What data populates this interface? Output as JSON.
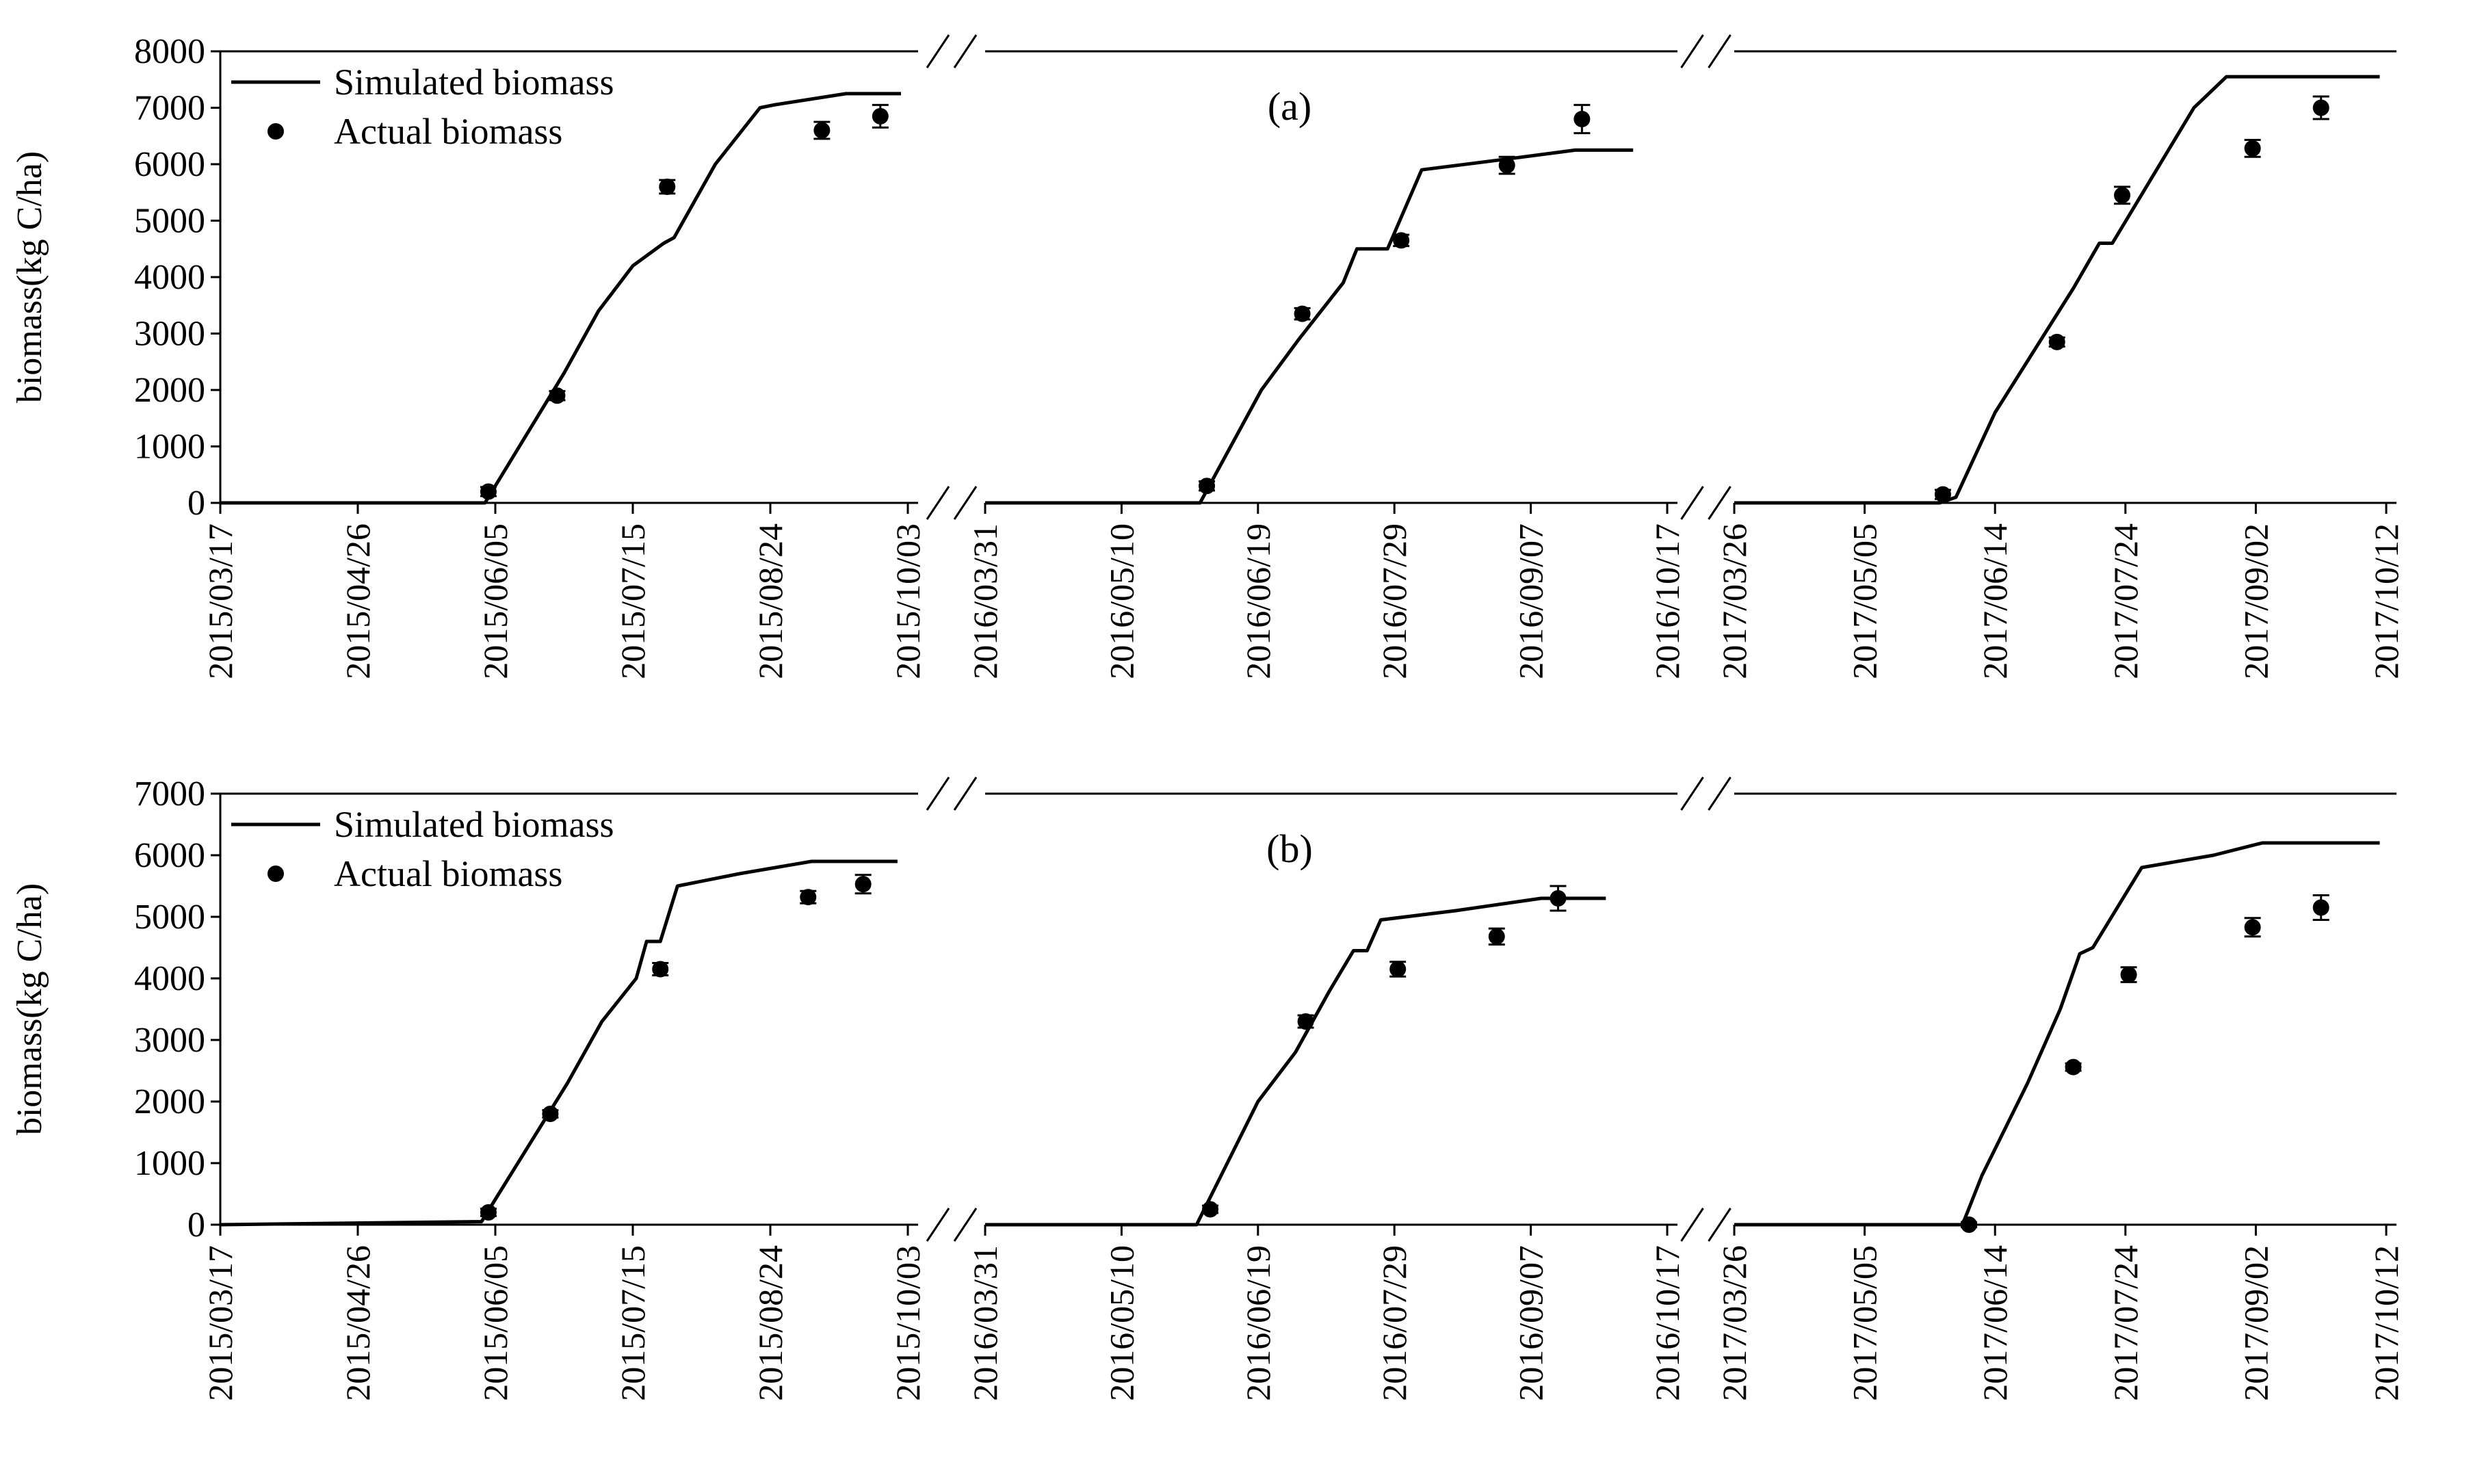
{
  "chart_data": [
    {
      "type": "line",
      "panel_label": "(a)",
      "ylabel": "biomass(kg C/ha)",
      "ylim": [
        0,
        8000
      ],
      "yticks": [
        "0",
        "1000",
        "2000",
        "3000",
        "4000",
        "5000",
        "6000",
        "7000",
        "8000"
      ],
      "legend": {
        "placement": "top-left",
        "simulated_label": "Simulated biomass",
        "actual_label": "Actual biomass"
      },
      "segments": [
        {
          "xticks": [
            "2015/03/17",
            "2015/04/26",
            "2015/06/05",
            "2015/07/15",
            "2015/08/24",
            "2015/10/03"
          ],
          "simulated": {
            "x": [
              "2015/03/17",
              "2015/06/02",
              "2015/06/06",
              "2015/06/25",
              "2015/07/05",
              "2015/07/15",
              "2015/07/24",
              "2015/07/27",
              "2015/08/08",
              "2015/08/21",
              "2015/08/25",
              "2015/09/15",
              "2015/10/01"
            ],
            "y": [
              0,
              0,
              400,
              2300,
              3400,
              4200,
              4600,
              4700,
              6000,
              7000,
              7050,
              7250,
              7250
            ]
          },
          "actual": {
            "x": [
              "2015/06/03",
              "2015/06/23",
              "2015/07/25",
              "2015/09/08",
              "2015/09/25"
            ],
            "y": [
              200,
              1900,
              5600,
              6600,
              6850
            ],
            "err": [
              80,
              80,
              120,
              150,
              200
            ]
          }
        },
        {
          "xticks": [
            "2016/03/31",
            "2016/05/10",
            "2016/06/19",
            "2016/07/29",
            "2016/09/07",
            "2016/10/17"
          ],
          "simulated": {
            "x": [
              "2016/03/31",
              "2016/06/02",
              "2016/06/20",
              "2016/07/01",
              "2016/07/14",
              "2016/07/18",
              "2016/07/27",
              "2016/08/06",
              "2016/09/01",
              "2016/09/20",
              "2016/10/07"
            ],
            "y": [
              0,
              0,
              2000,
              2900,
              3900,
              4500,
              4500,
              5900,
              6100,
              6250,
              6250
            ]
          },
          "actual": {
            "x": [
              "2016/06/04",
              "2016/07/02",
              "2016/07/31",
              "2016/08/31",
              "2016/09/22"
            ],
            "y": [
              300,
              3350,
              4650,
              5980,
              6800
            ],
            "err": [
              80,
              100,
              100,
              150,
              250
            ]
          }
        },
        {
          "xticks": [
            "2017/03/26",
            "2017/05/05",
            "2017/06/14",
            "2017/07/24",
            "2017/09/02",
            "2017/10/12"
          ],
          "simulated": {
            "x": [
              "2017/03/26",
              "2017/05/28",
              "2017/06/02",
              "2017/06/14",
              "2017/07/08",
              "2017/07/16",
              "2017/07/20",
              "2017/08/14",
              "2017/08/24",
              "2017/10/10"
            ],
            "y": [
              0,
              0,
              100,
              1600,
              3800,
              4600,
              4600,
              7000,
              7550,
              7550
            ]
          },
          "actual": {
            "x": [
              "2017/05/29",
              "2017/07/03",
              "2017/07/23",
              "2017/09/01",
              "2017/09/22"
            ],
            "y": [
              150,
              2850,
              5450,
              6280,
              7000
            ],
            "err": [
              80,
              80,
              150,
              150,
              200
            ]
          }
        }
      ]
    },
    {
      "type": "line",
      "panel_label": "(b)",
      "ylabel": "biomass(kg C/ha)",
      "ylim": [
        0,
        7000
      ],
      "yticks": [
        "0",
        "1000",
        "2000",
        "3000",
        "4000",
        "5000",
        "6000",
        "7000"
      ],
      "legend": {
        "placement": "top-left",
        "simulated_label": "Simulated biomass",
        "actual_label": "Actual biomass"
      },
      "segments": [
        {
          "xticks": [
            "2015/03/17",
            "2015/04/26",
            "2015/06/05",
            "2015/07/15",
            "2015/08/24",
            "2015/10/03"
          ],
          "simulated": {
            "x": [
              "2015/03/17",
              "2015/06/01",
              "2015/06/06",
              "2015/06/26",
              "2015/07/06",
              "2015/07/16",
              "2015/07/19",
              "2015/07/23",
              "2015/07/28",
              "2015/08/15",
              "2015/09/05",
              "2015/09/30"
            ],
            "y": [
              0,
              50,
              500,
              2300,
              3300,
              4000,
              4600,
              4600,
              5500,
              5700,
              5900,
              5900
            ]
          },
          "actual": {
            "x": [
              "2015/06/03",
              "2015/06/21",
              "2015/07/23",
              "2015/09/04",
              "2015/09/20"
            ],
            "y": [
              200,
              1800,
              4150,
              5320,
              5530
            ],
            "err": [
              60,
              60,
              100,
              100,
              150
            ]
          }
        },
        {
          "xticks": [
            "2016/03/31",
            "2016/05/10",
            "2016/06/19",
            "2016/07/29",
            "2016/09/07",
            "2016/10/17"
          ],
          "simulated": {
            "x": [
              "2016/03/31",
              "2016/06/01",
              "2016/06/19",
              "2016/06/30",
              "2016/07/10",
              "2016/07/17",
              "2016/07/21",
              "2016/07/25",
              "2016/08/16",
              "2016/09/10",
              "2016/09/29"
            ],
            "y": [
              0,
              0,
              2000,
              2800,
              3800,
              4450,
              4450,
              4950,
              5100,
              5300,
              5300
            ]
          },
          "actual": {
            "x": [
              "2016/06/05",
              "2016/07/03",
              "2016/07/30",
              "2016/08/28",
              "2016/09/15"
            ],
            "y": [
              250,
              3300,
              4150,
              4680,
              5300
            ],
            "err": [
              60,
              100,
              120,
              130,
              200
            ]
          }
        },
        {
          "xticks": [
            "2017/03/26",
            "2017/05/05",
            "2017/06/14",
            "2017/07/24",
            "2017/09/02",
            "2017/10/12"
          ],
          "simulated": {
            "x": [
              "2017/03/26",
              "2017/06/04",
              "2017/06/10",
              "2017/06/24",
              "2017/07/04",
              "2017/07/10",
              "2017/07/14",
              "2017/07/29",
              "2017/08/20",
              "2017/09/04",
              "2017/10/10"
            ],
            "y": [
              0,
              0,
              800,
              2300,
              3500,
              4400,
              4500,
              5800,
              6000,
              6200,
              6200
            ]
          },
          "actual": {
            "x": [
              "2017/06/06",
              "2017/07/08",
              "2017/07/25",
              "2017/09/01",
              "2017/09/22"
            ],
            "y": [
              0,
              2560,
              4060,
              4830,
              5150
            ],
            "err": [
              40,
              60,
              120,
              150,
              200
            ]
          }
        }
      ]
    }
  ]
}
